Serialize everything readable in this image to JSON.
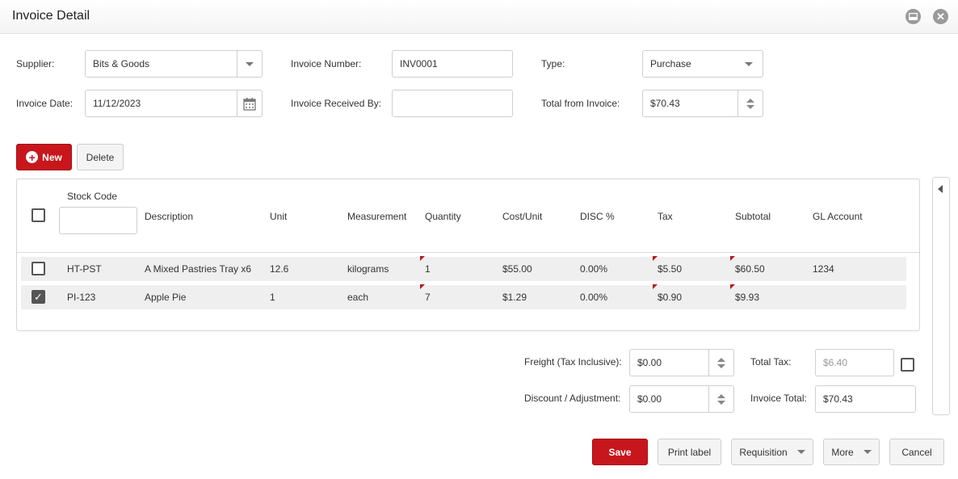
{
  "window": {
    "title": "Invoice Detail"
  },
  "form": {
    "supplier_label": "Supplier:",
    "supplier_value": "Bits & Goods",
    "invoice_number_label": "Invoice Number:",
    "invoice_number_value": "INV0001",
    "type_label": "Type:",
    "type_value": "Purchase",
    "invoice_date_label": "Invoice Date:",
    "invoice_date_value": "11/12/2023",
    "received_by_label": "Invoice Received By:",
    "received_by_value": "",
    "total_from_invoice_label": "Total from Invoice:",
    "total_from_invoice_value": "$70.43"
  },
  "toolbar": {
    "new_label": "New",
    "delete_label": "Delete"
  },
  "grid": {
    "columns": {
      "stock_code": "Stock Code",
      "description": "Description",
      "unit": "Unit",
      "measurement": "Measurement",
      "quantity": "Quantity",
      "cost_unit": "Cost/Unit",
      "disc": "DISC %",
      "tax": "Tax",
      "subtotal": "Subtotal",
      "gl_account": "GL Account"
    },
    "rows": [
      {
        "checked": false,
        "stock_code": "HT-PST",
        "description": "A Mixed Pastries Tray x6",
        "unit": "12.6",
        "measurement": "kilograms",
        "quantity": "1",
        "cost_unit": "$55.00",
        "disc": "0.00%",
        "tax": "$5.50",
        "subtotal": "$60.50",
        "gl_account": "1234"
      },
      {
        "checked": true,
        "stock_code": "PI-123",
        "description": "Apple Pie",
        "unit": "1",
        "measurement": "each",
        "quantity": "7",
        "cost_unit": "$1.29",
        "disc": "0.00%",
        "tax": "$0.90",
        "subtotal": "$9.93",
        "gl_account": ""
      }
    ]
  },
  "totals": {
    "freight_label": "Freight (Tax Inclusive):",
    "freight_value": "$0.00",
    "discount_label": "Discount / Adjustment:",
    "discount_value": "$0.00",
    "total_tax_label": "Total Tax:",
    "total_tax_value": "$6.40",
    "invoice_total_label": "Invoice Total:",
    "invoice_total_value": "$70.43"
  },
  "actions": {
    "save": "Save",
    "print_label": "Print label",
    "requisition": "Requisition",
    "more": "More",
    "cancel": "Cancel"
  },
  "colors": {
    "accent": "#c8161d",
    "row_bg": "#efefef",
    "border": "#cfcfcf"
  }
}
